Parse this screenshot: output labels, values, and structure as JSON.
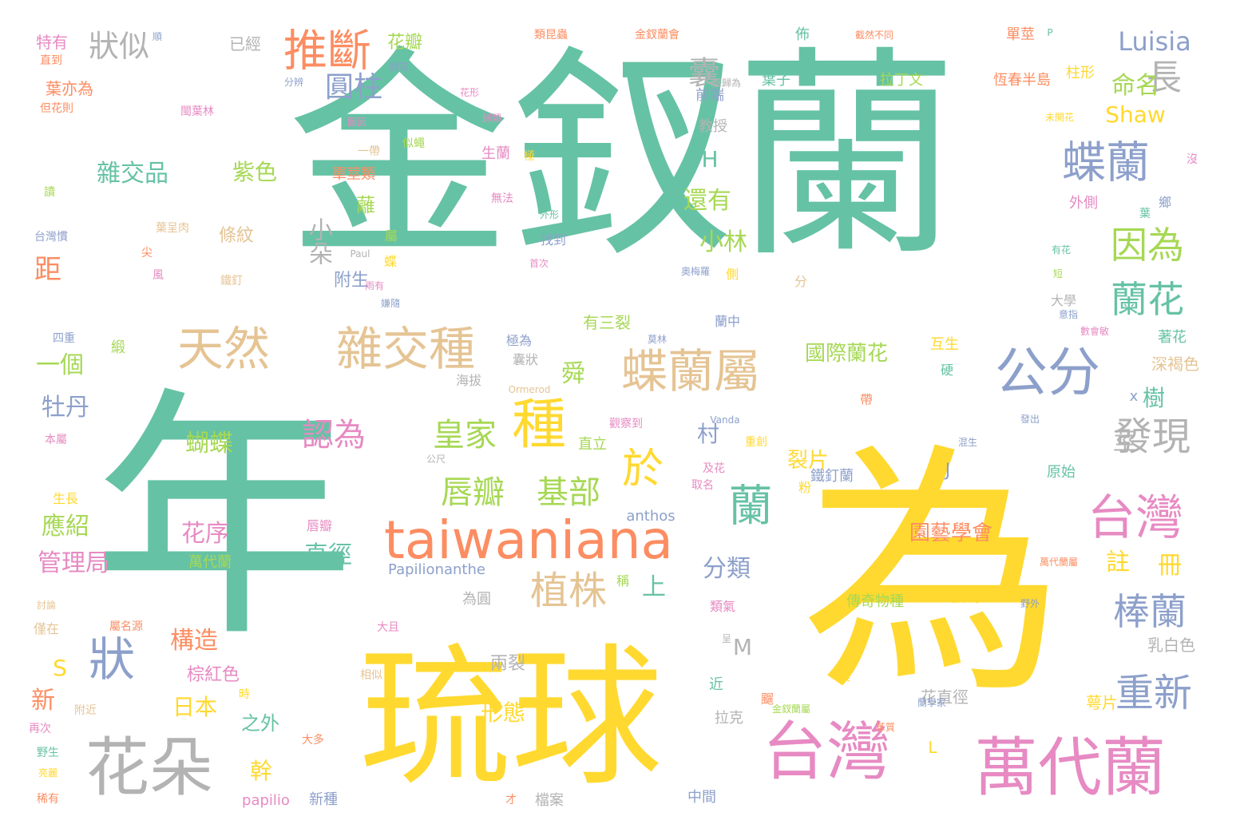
{
  "words": [
    {
      "text": "金釵蘭",
      "color": "#66c2a5"
    },
    {
      "text": "年",
      "color": "#66c2a5"
    },
    {
      "text": "為",
      "color": "#ffd92f"
    },
    {
      "text": "琉球",
      "color": "#ffd92f"
    },
    {
      "text": "台灣",
      "color": "#e78ac3"
    },
    {
      "text": "萬代蘭",
      "color": "#e78ac3"
    },
    {
      "text": "花朵",
      "color": "#b3b3b3"
    },
    {
      "text": "taiwaniana",
      "color": "#fc8d62"
    },
    {
      "text": "蝶蘭屬",
      "color": "#e5c494"
    },
    {
      "text": "天然",
      "color": "#e5c494"
    },
    {
      "text": "雜交種",
      "color": "#e5c494"
    },
    {
      "text": "公分",
      "color": "#8da0cb"
    },
    {
      "text": "種",
      "color": "#ffd92f"
    },
    {
      "text": "於",
      "color": "#ffd92f"
    },
    {
      "text": "蘭",
      "color": "#66c2a5"
    },
    {
      "text": "狀",
      "color": "#8da0cb"
    },
    {
      "text": "台灣",
      "color": "#e78ac3"
    },
    {
      "text": "蝶蘭",
      "color": "#8da0cb"
    },
    {
      "text": "推斷",
      "color": "#fc8d62"
    },
    {
      "text": "因為",
      "color": "#a6d854"
    },
    {
      "text": "蘭花",
      "color": "#66c2a5"
    },
    {
      "text": "發現",
      "color": "#b3b3b3"
    },
    {
      "text": "植株",
      "color": "#e5c494"
    },
    {
      "text": "棒蘭",
      "color": "#8da0cb"
    },
    {
      "text": "重新",
      "color": "#8da0cb"
    },
    {
      "text": "唇瓣",
      "color": "#a6d854"
    },
    {
      "text": "基部",
      "color": "#a6d854"
    },
    {
      "text": "認為",
      "color": "#e78ac3"
    },
    {
      "text": "皇家",
      "color": "#a6d854"
    },
    {
      "text": "狀似",
      "color": "#b3b3b3"
    },
    {
      "text": "圓柱",
      "color": "#8da0cb"
    },
    {
      "text": "長",
      "color": "#b3b3b3"
    },
    {
      "text": "Luisia",
      "color": "#8da0cb"
    },
    {
      "text": "命名",
      "color": "#a6d854"
    },
    {
      "text": "Shaw",
      "color": "#ffd92f"
    },
    {
      "text": "囊",
      "color": "#b3b3b3"
    },
    {
      "text": "雜交品",
      "color": "#66c2a5"
    },
    {
      "text": "紫色",
      "color": "#a6d854"
    },
    {
      "text": "還有",
      "color": "#a6d854"
    },
    {
      "text": "小林",
      "color": "#a6d854"
    },
    {
      "text": "小朵",
      "color": "#b3b3b3"
    },
    {
      "text": "距",
      "color": "#fc8d62"
    },
    {
      "text": "一個",
      "color": "#a6d854"
    },
    {
      "text": "牡丹",
      "color": "#8da0cb"
    },
    {
      "text": "蝴蝶",
      "color": "#a6d854"
    },
    {
      "text": "應紹",
      "color": "#a6d854"
    },
    {
      "text": "管理局",
      "color": "#e78ac3"
    },
    {
      "text": "構造",
      "color": "#fc8d62"
    },
    {
      "text": "日本",
      "color": "#ffd92f"
    },
    {
      "text": "花序",
      "color": "#e78ac3"
    },
    {
      "text": "直徑",
      "color": "#66c2a5"
    },
    {
      "text": "上",
      "color": "#66c2a5"
    },
    {
      "text": "分類",
      "color": "#8da0cb"
    },
    {
      "text": "園藝學會",
      "color": "#fc8d62"
    },
    {
      "text": "國際蘭花",
      "color": "#a6d854"
    },
    {
      "text": "裂片",
      "color": "#ffd92f"
    },
    {
      "text": "註",
      "color": "#ffd92f"
    },
    {
      "text": "冊",
      "color": "#ffd92f"
    },
    {
      "text": "舜",
      "color": "#a6d854"
    },
    {
      "text": "有三裂",
      "color": "#a6d854"
    },
    {
      "text": "莖",
      "color": "#b3b3b3"
    },
    {
      "text": "樹",
      "color": "#66c2a5"
    },
    {
      "text": "村",
      "color": "#8da0cb"
    },
    {
      "text": "形態",
      "color": "#ffd92f"
    },
    {
      "text": "兩裂",
      "color": "#b3b3b3"
    },
    {
      "text": "之外",
      "color": "#66c2a5"
    },
    {
      "text": "幹",
      "color": "#ffd92f"
    },
    {
      "text": "棕紅色",
      "color": "#e78ac3"
    },
    {
      "text": "附生",
      "color": "#8da0cb"
    },
    {
      "text": "條紋",
      "color": "#e5c494"
    },
    {
      "text": "新",
      "color": "#fc8d62"
    },
    {
      "text": "S",
      "color": "#ffd92f"
    },
    {
      "text": "M",
      "color": "#b3b3b3"
    },
    {
      "text": "H",
      "color": "#66c2a5"
    },
    {
      "text": "J",
      "color": "#8da0cb"
    },
    {
      "text": "L",
      "color": "#ffd92f"
    },
    {
      "text": "x",
      "color": "#8da0cb"
    },
    {
      "text": "anthos",
      "color": "#8da0cb"
    },
    {
      "text": "Papilionanthe",
      "color": "#8da0cb"
    },
    {
      "text": "papilio",
      "color": "#e78ac3"
    },
    {
      "text": "Ormerod",
      "color": "#e5c494"
    },
    {
      "text": "Vanda",
      "color": "#8da0cb"
    },
    {
      "text": "Paul",
      "color": "#b3b3b3"
    },
    {
      "text": "P",
      "color": "#66c2a5"
    },
    {
      "text": "花瓣",
      "color": "#a6d854"
    },
    {
      "text": "花直徑",
      "color": "#b3b3b3"
    },
    {
      "text": "萼片",
      "color": "#ffd92f"
    },
    {
      "text": "乳白色",
      "color": "#b3b3b3"
    },
    {
      "text": "深褐色",
      "color": "#e5c494"
    },
    {
      "text": "傳奇物種",
      "color": "#a6d854"
    },
    {
      "text": "柱形",
      "color": "#ffd92f"
    },
    {
      "text": "單莖",
      "color": "#fc8d62"
    },
    {
      "text": "恆春半島",
      "color": "#fc8d62"
    },
    {
      "text": "拉丁文",
      "color": "#a6d854"
    },
    {
      "text": "葉子",
      "color": "#66c2a5"
    },
    {
      "text": "前端",
      "color": "#8da0cb"
    },
    {
      "text": "教授",
      "color": "#b3b3b3"
    },
    {
      "text": "特有",
      "color": "#e78ac3"
    },
    {
      "text": "葉亦為",
      "color": "#fc8d62"
    },
    {
      "text": "已經",
      "color": "#b3b3b3"
    },
    {
      "text": "佈",
      "color": "#66c2a5"
    },
    {
      "text": "原始",
      "color": "#66c2a5"
    },
    {
      "text": "外側",
      "color": "#e78ac3"
    },
    {
      "text": "著花",
      "color": "#66c2a5"
    },
    {
      "text": "互生",
      "color": "#ffd92f"
    },
    {
      "text": "鐵釘蘭",
      "color": "#8da0cb"
    },
    {
      "text": "直立",
      "color": "#a6d854"
    },
    {
      "text": "生蘭",
      "color": "#e78ac3"
    },
    {
      "text": "單莖類",
      "color": "#fc8d62"
    },
    {
      "text": "中間",
      "color": "#8da0cb"
    },
    {
      "text": "新種",
      "color": "#8da0cb"
    },
    {
      "text": "檔案",
      "color": "#b3b3b3"
    },
    {
      "text": "為圓",
      "color": "#b3b3b3"
    },
    {
      "text": "近",
      "color": "#66c2a5"
    },
    {
      "text": "拉克",
      "color": "#b3b3b3"
    },
    {
      "text": "類氣",
      "color": "#e78ac3"
    },
    {
      "text": "大學",
      "color": "#b3b3b3"
    },
    {
      "text": "蘭中",
      "color": "#8da0cb"
    },
    {
      "text": "側",
      "color": "#ffd92f"
    },
    {
      "text": "找到",
      "color": "#8da0cb"
    },
    {
      "text": "囊狀",
      "color": "#b3b3b3"
    },
    {
      "text": "海拔",
      "color": "#b3b3b3"
    },
    {
      "text": "極為",
      "color": "#8da0cb"
    },
    {
      "text": "唇瓣",
      "color": "#e78ac3"
    },
    {
      "text": "萬代蘭",
      "color": "#a6d854"
    },
    {
      "text": "生長",
      "color": "#ffd92f"
    },
    {
      "text": "本屬",
      "color": "#e78ac3"
    },
    {
      "text": "僅在",
      "color": "#e5c494"
    },
    {
      "text": "附近",
      "color": "#e5c494"
    },
    {
      "text": "再次",
      "color": "#e78ac3"
    },
    {
      "text": "野生",
      "color": "#66c2a5"
    },
    {
      "text": "稀有",
      "color": "#fc8d62"
    },
    {
      "text": "四重",
      "color": "#8da0cb"
    },
    {
      "text": "台灣慣",
      "color": "#8da0cb"
    },
    {
      "text": "鐵釘",
      "color": "#e5c494"
    },
    {
      "text": "風",
      "color": "#e78ac3"
    },
    {
      "text": "尖",
      "color": "#fc8d62"
    },
    {
      "text": "葉呈肉",
      "color": "#e5c494"
    },
    {
      "text": "蘺",
      "color": "#a6d854"
    },
    {
      "text": "緞",
      "color": "#a6d854"
    },
    {
      "text": "屬名源",
      "color": "#fc8d62"
    },
    {
      "text": "大且",
      "color": "#e78ac3"
    },
    {
      "text": "相似",
      "color": "#e5c494"
    },
    {
      "text": "時",
      "color": "#ffd92f"
    },
    {
      "text": "大多",
      "color": "#fc8d62"
    },
    {
      "text": "亮麗",
      "color": "#ffd92f"
    },
    {
      "text": "閩葉林",
      "color": "#e78ac3"
    },
    {
      "text": "但花則",
      "color": "#fc8d62"
    },
    {
      "text": "直到",
      "color": "#fc8d62"
    },
    {
      "text": "分辨",
      "color": "#8da0cb"
    },
    {
      "text": "開花",
      "color": "#8da0cb"
    },
    {
      "text": "花形",
      "color": "#e78ac3"
    },
    {
      "text": "歸類",
      "color": "#e78ac3"
    },
    {
      "text": "感歸為",
      "color": "#b3b3b3"
    },
    {
      "text": "類昆蟲",
      "color": "#fc8d62"
    },
    {
      "text": "金釵蘭會",
      "color": "#fc8d62"
    },
    {
      "text": "截然不同",
      "color": "#fc8d62"
    },
    {
      "text": "未開花",
      "color": "#ffd92f"
    },
    {
      "text": "似蠅",
      "color": "#a6d854"
    },
    {
      "text": "一帶",
      "color": "#e5c494"
    },
    {
      "text": "無法",
      "color": "#e78ac3"
    },
    {
      "text": "外形",
      "color": "#66c2a5"
    },
    {
      "text": "首次",
      "color": "#e78ac3"
    },
    {
      "text": "觀察到",
      "color": "#e78ac3"
    },
    {
      "text": "重創",
      "color": "#ffd92f"
    },
    {
      "text": "及花",
      "color": "#e78ac3"
    },
    {
      "text": "取名",
      "color": "#e78ac3"
    },
    {
      "text": "發表時",
      "color": "#ffd92f"
    },
    {
      "text": "萬代蘭屬",
      "color": "#fc8d62"
    },
    {
      "text": "金釵蘭屬",
      "color": "#a6d854"
    },
    {
      "text": "蘭學家",
      "color": "#8da0cb"
    },
    {
      "text": "革質",
      "color": "#fc8d62"
    },
    {
      "text": "混生",
      "color": "#8da0cb"
    },
    {
      "text": "發出",
      "color": "#8da0cb"
    },
    {
      "text": "野外",
      "color": "#8da0cb"
    },
    {
      "text": "數會敏",
      "color": "#e78ac3"
    },
    {
      "text": "意指",
      "color": "#8da0cb"
    },
    {
      "text": "奧梅羅",
      "color": "#8da0cb"
    },
    {
      "text": "莫林",
      "color": "#8da0cb"
    },
    {
      "text": "粉",
      "color": "#ffd92f"
    },
    {
      "text": "分",
      "color": "#e5c494"
    },
    {
      "text": "公尺",
      "color": "#b3b3b3"
    },
    {
      "text": "蝶",
      "color": "#ffd92f"
    },
    {
      "text": "屬",
      "color": "#a6d854"
    },
    {
      "text": "極",
      "color": "#ffd92f"
    },
    {
      "text": "稱",
      "color": "#a6d854"
    },
    {
      "text": "葉",
      "color": "#66c2a5"
    },
    {
      "text": "溪",
      "color": "#ffd92f"
    },
    {
      "text": "硬",
      "color": "#66c2a5"
    },
    {
      "text": "飀",
      "color": "#fc8d62"
    },
    {
      "text": "帶",
      "color": "#fc8d62"
    },
    {
      "text": "鄉",
      "color": "#8da0cb"
    },
    {
      "text": "有花",
      "color": "#66c2a5"
    },
    {
      "text": "短",
      "color": "#a6d854"
    },
    {
      "text": "沒",
      "color": "#e78ac3"
    },
    {
      "text": "順",
      "color": "#8da0cb"
    },
    {
      "text": "讀",
      "color": "#a6d854"
    },
    {
      "text": "圖因",
      "color": "#e78ac3"
    },
    {
      "text": "呈",
      "color": "#b3b3b3"
    },
    {
      "text": "才",
      "color": "#fc8d62"
    },
    {
      "text": "討論",
      "color": "#e5c494"
    },
    {
      "text": "嫌隨",
      "color": "#8da0cb"
    },
    {
      "text": "雨有",
      "color": "#e78ac3"
    }
  ]
}
